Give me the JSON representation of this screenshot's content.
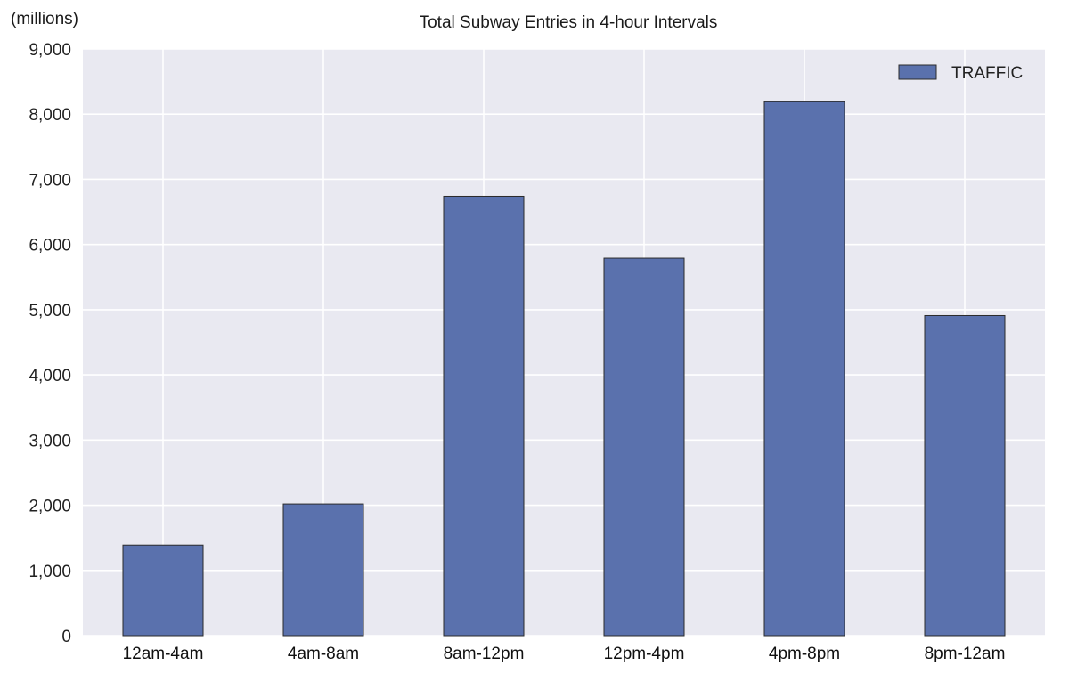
{
  "chart_data": {
    "type": "bar",
    "title": "Total Subway Entries in 4-hour Intervals",
    "unit_label": "(millions)",
    "xlabel": "",
    "ylabel": "",
    "categories": [
      "12am-4am",
      "4am-8am",
      "8am-12pm",
      "12pm-4pm",
      "4pm-8pm",
      "8pm-12am"
    ],
    "series": [
      {
        "name": "TRAFFIC",
        "values": [
          1390,
          2020,
          6740,
          5790,
          8190,
          4910
        ],
        "color": "#5a71ad"
      }
    ],
    "ylim": [
      0,
      9000
    ],
    "yticks": [
      0,
      1000,
      2000,
      3000,
      4000,
      5000,
      6000,
      7000,
      8000,
      9000
    ],
    "ytick_labels": [
      "0",
      "1,000",
      "2,000",
      "3,000",
      "4,000",
      "5,000",
      "6,000",
      "7,000",
      "8,000",
      "9,000"
    ],
    "grid": true,
    "legend_position": "top-right",
    "background_color": "#e9e9f1",
    "grid_color": "#ffffff"
  }
}
